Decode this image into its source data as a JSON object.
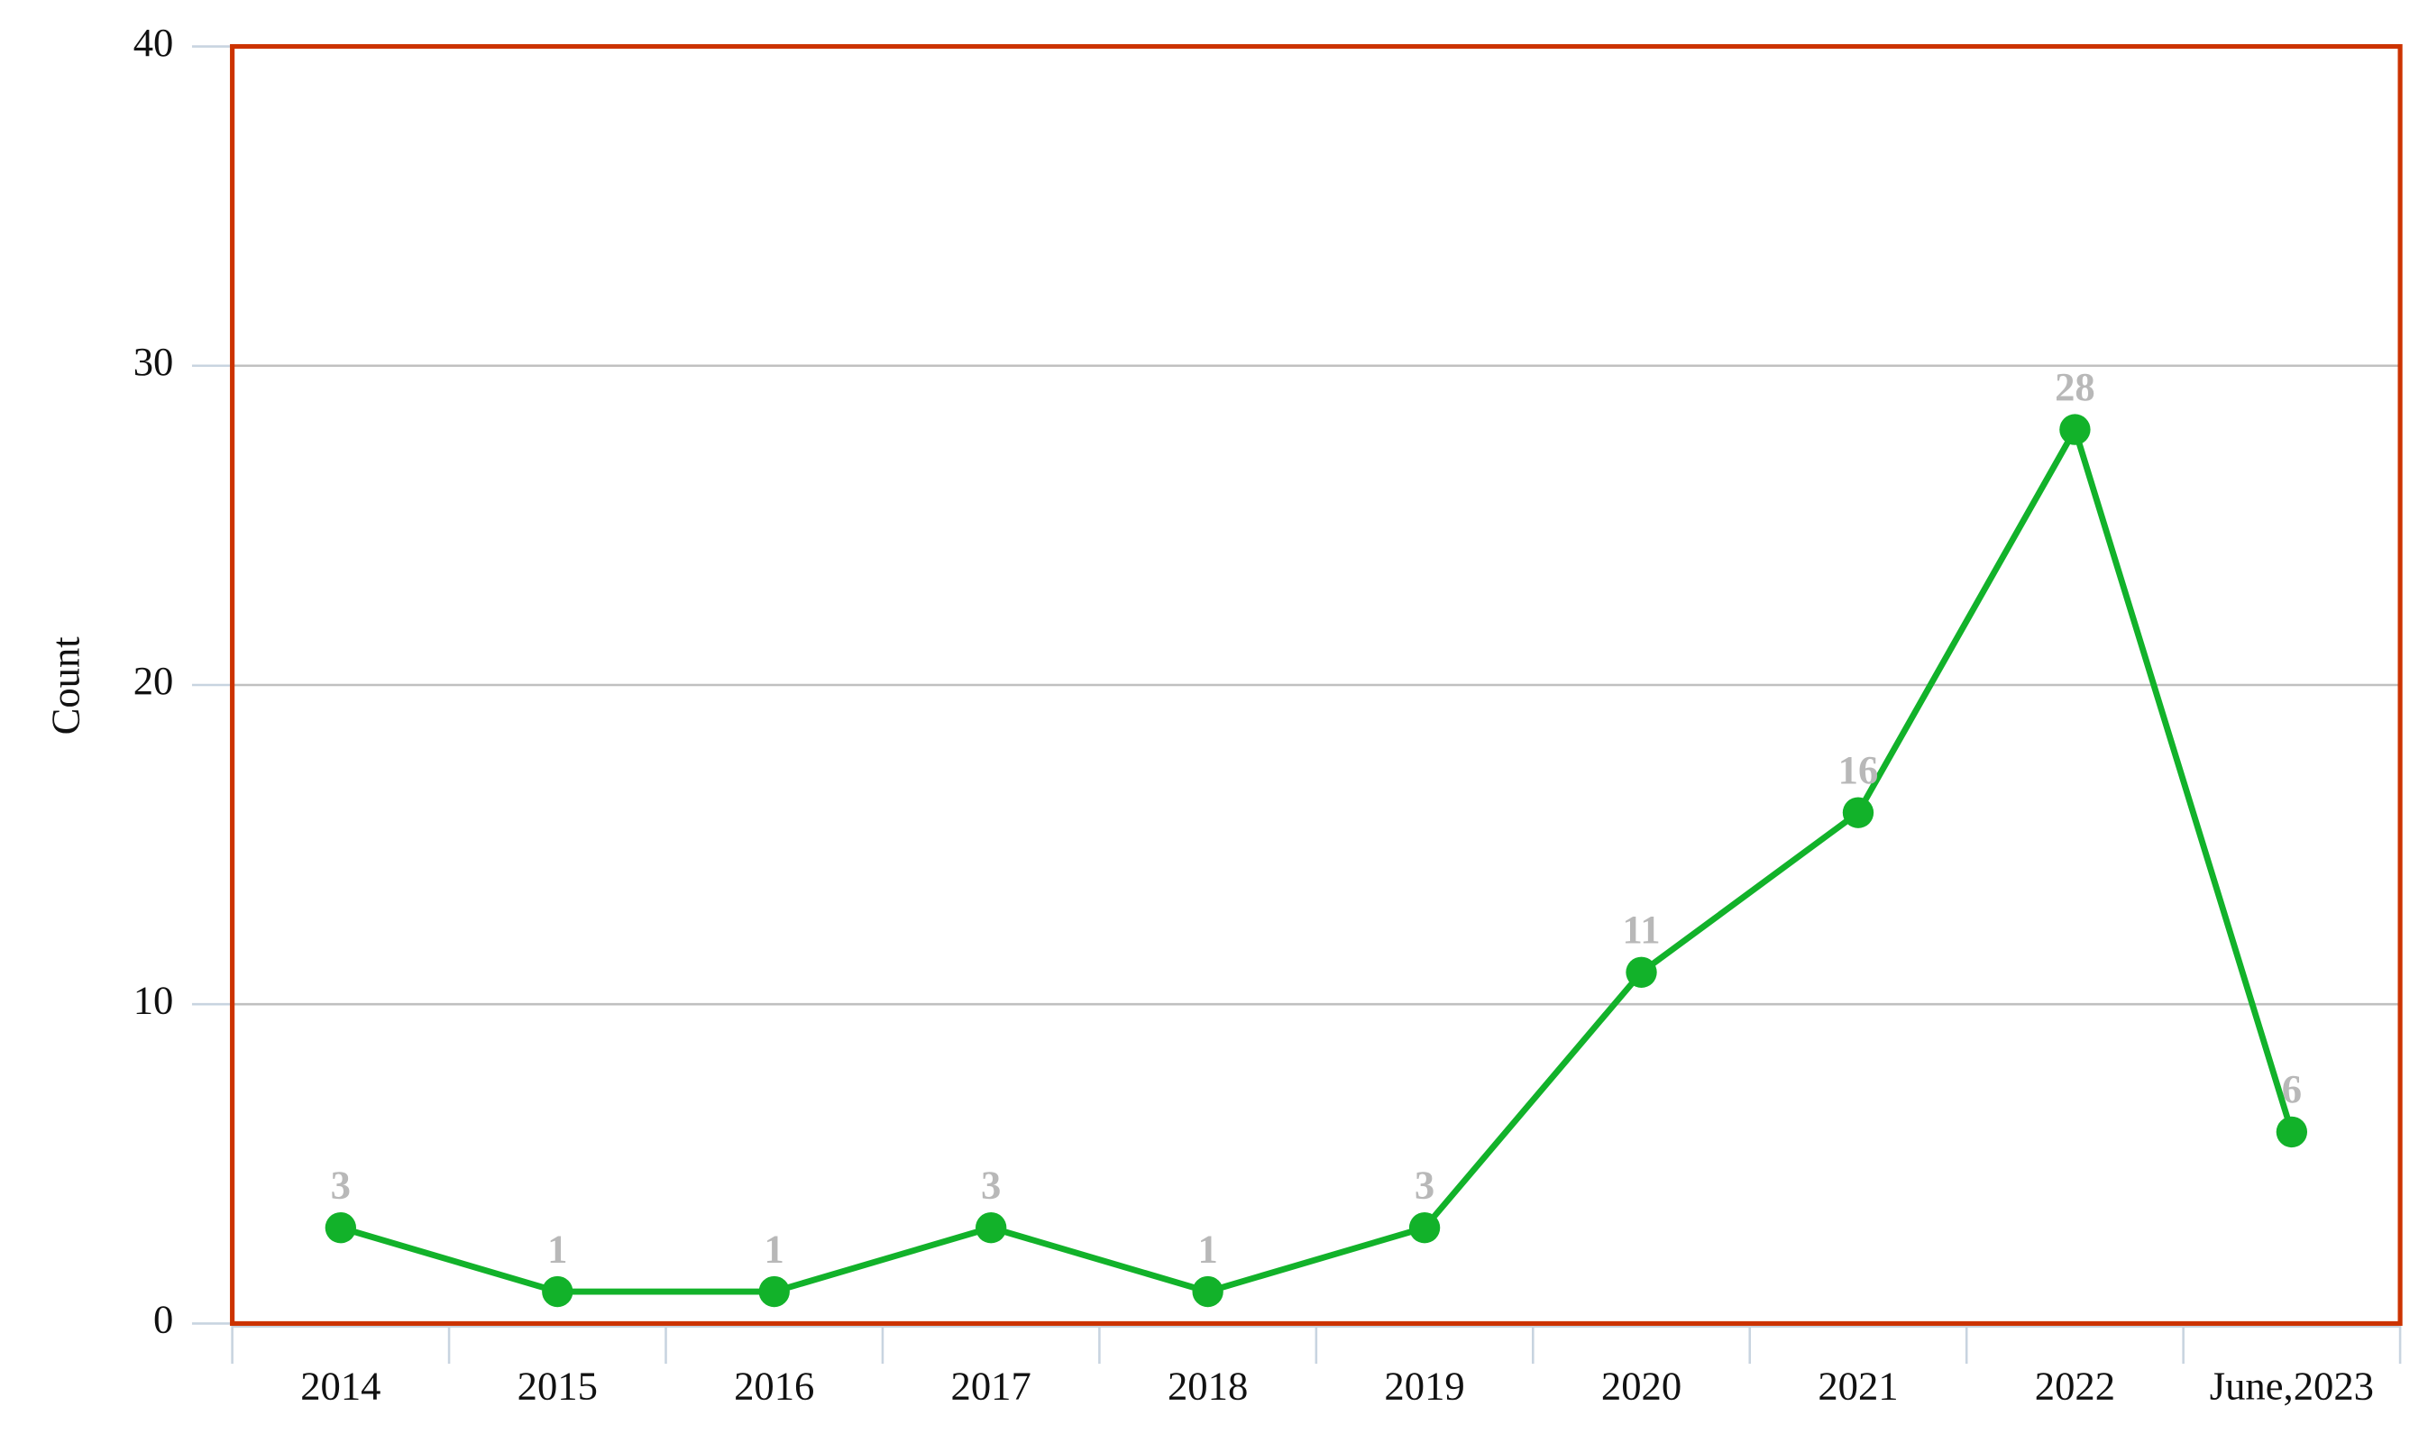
{
  "chart_data": {
    "type": "line",
    "y_label": "Count",
    "categories": [
      "2014",
      "2015",
      "2016",
      "2017",
      "2018",
      "2019",
      "2020",
      "2021",
      "2022",
      "June,2023"
    ],
    "values": [
      3,
      1,
      1,
      3,
      1,
      3,
      11,
      16,
      28,
      6
    ],
    "color": "#12b22a",
    "ylim": [
      0,
      40
    ],
    "yticks": [
      0,
      10,
      20,
      30,
      40
    ],
    "grid": true
  }
}
